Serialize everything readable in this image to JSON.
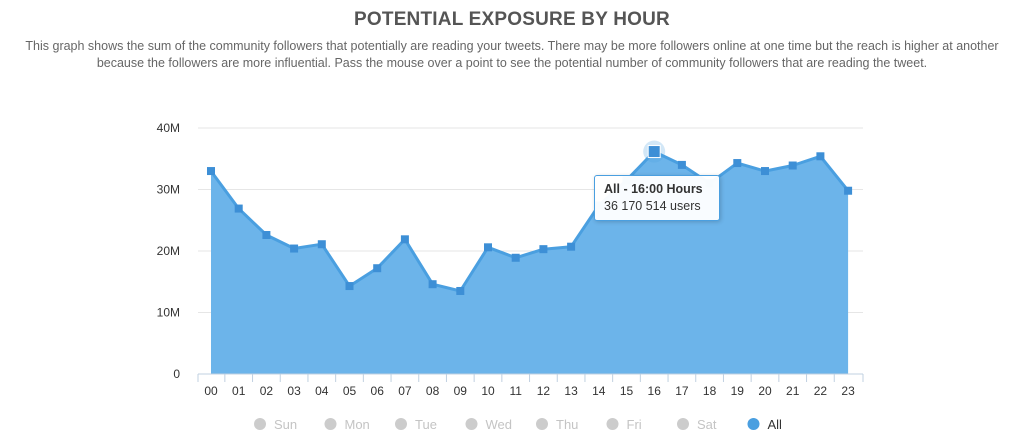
{
  "page": {
    "title": "POTENTIAL EXPOSURE BY HOUR",
    "description": "This graph shows the sum of the community followers that potentially are reading your tweets. There may be more followers online at one time but the reach is higher at another because the followers are more influential. Pass the mouse over a point to see the potential number of community followers that are reading the tweet."
  },
  "tooltip": {
    "title": "All - 16:00 Hours",
    "value_text": "36 170 514 users"
  },
  "legend": {
    "items": [
      {
        "label": "Sun",
        "active": false
      },
      {
        "label": "Mon",
        "active": false
      },
      {
        "label": "Tue",
        "active": false
      },
      {
        "label": "Wed",
        "active": false
      },
      {
        "label": "Thu",
        "active": false
      },
      {
        "label": "Fri",
        "active": false
      },
      {
        "label": "Sat",
        "active": false
      },
      {
        "label": "All",
        "active": true
      }
    ]
  },
  "colors": {
    "series_line": "#4a9fe0",
    "series_fill": "#6cb4ea",
    "marker": "#3d8fd6",
    "legend_active": "#4a9fe0",
    "legend_inactive": "#cccccc",
    "legend_inactive_text": "#c4c4c4",
    "legend_active_text": "#333333",
    "grid": "#e6e6e6"
  },
  "chart_data": {
    "type": "area",
    "title": "POTENTIAL EXPOSURE BY HOUR",
    "categories": [
      "00",
      "01",
      "02",
      "03",
      "04",
      "05",
      "06",
      "07",
      "08",
      "09",
      "10",
      "11",
      "12",
      "13",
      "14",
      "15",
      "16",
      "17",
      "18",
      "19",
      "20",
      "21",
      "22",
      "23"
    ],
    "series": [
      {
        "name": "All",
        "values": [
          33000000,
          26900000,
          22600000,
          20400000,
          21100000,
          14300000,
          17200000,
          21900000,
          14600000,
          13500000,
          20600000,
          18900000,
          20300000,
          20700000,
          27400000,
          31500000,
          36170514,
          34000000,
          31000000,
          34300000,
          33000000,
          33900000,
          35400000,
          29800000
        ]
      }
    ],
    "y_ticks": [
      0,
      10000000,
      20000000,
      30000000,
      40000000
    ],
    "y_tick_labels": [
      "0",
      "10M",
      "20M",
      "30M",
      "40M"
    ],
    "ylim": [
      0,
      40000000
    ],
    "grid": true,
    "legend_position": "bottom",
    "highlighted_point": "16"
  }
}
